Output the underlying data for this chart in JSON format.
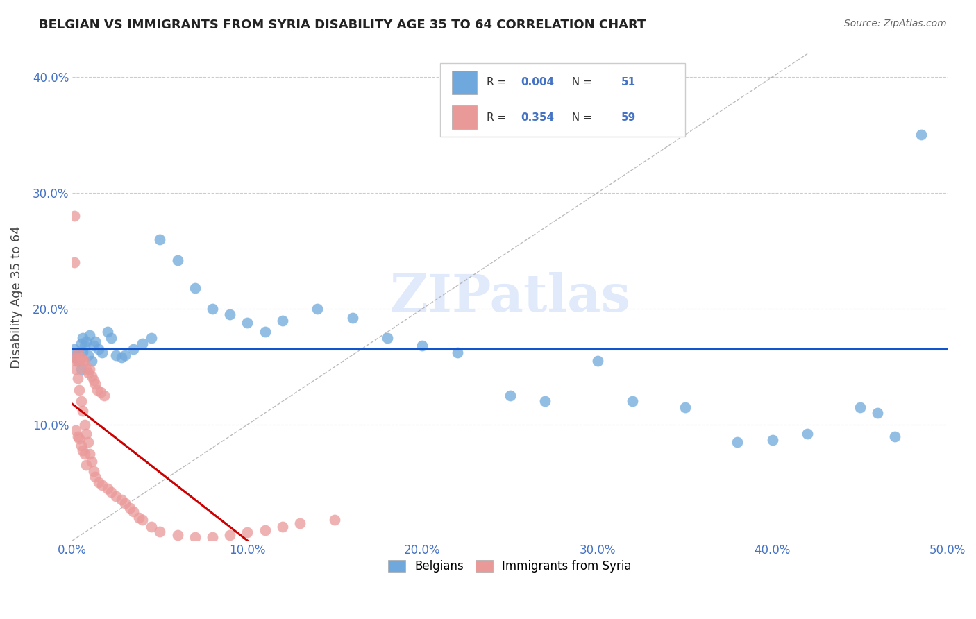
{
  "title": "BELGIAN VS IMMIGRANTS FROM SYRIA DISABILITY AGE 35 TO 64 CORRELATION CHART",
  "source": "Source: ZipAtlas.com",
  "ylabel": "Disability Age 35 to 64",
  "xlim": [
    0.0,
    0.5
  ],
  "ylim": [
    0.0,
    0.42
  ],
  "xticks": [
    0.0,
    0.1,
    0.2,
    0.3,
    0.4,
    0.5
  ],
  "yticks": [
    0.1,
    0.2,
    0.3,
    0.4
  ],
  "xticklabels": [
    "0.0%",
    "10.0%",
    "20.0%",
    "30.0%",
    "40.0%",
    "50.0%"
  ],
  "yticklabels": [
    "10.0%",
    "20.0%",
    "30.0%",
    "40.0%"
  ],
  "legend_labels": [
    "Belgians",
    "Immigrants from Syria"
  ],
  "R_belgian": 0.004,
  "N_belgian": 51,
  "R_syria": 0.354,
  "N_syria": 59,
  "blue_color": "#6fa8dc",
  "pink_color": "#ea9999",
  "line_blue": "#1155cc",
  "line_pink": "#cc0000",
  "watermark": "ZIPatlas",
  "bel_x": [
    0.001,
    0.002,
    0.003,
    0.003,
    0.004,
    0.005,
    0.005,
    0.006,
    0.006,
    0.007,
    0.008,
    0.009,
    0.01,
    0.011,
    0.012,
    0.013,
    0.015,
    0.017,
    0.02,
    0.022,
    0.025,
    0.028,
    0.03,
    0.035,
    0.04,
    0.045,
    0.05,
    0.06,
    0.07,
    0.08,
    0.09,
    0.1,
    0.11,
    0.12,
    0.14,
    0.16,
    0.18,
    0.2,
    0.22,
    0.25,
    0.27,
    0.3,
    0.32,
    0.35,
    0.38,
    0.4,
    0.42,
    0.45,
    0.46,
    0.47,
    0.485
  ],
  "bel_y": [
    0.165,
    0.158,
    0.162,
    0.155,
    0.16,
    0.17,
    0.148,
    0.175,
    0.163,
    0.168,
    0.172,
    0.16,
    0.177,
    0.155,
    0.168,
    0.172,
    0.165,
    0.162,
    0.18,
    0.175,
    0.16,
    0.158,
    0.16,
    0.165,
    0.17,
    0.175,
    0.26,
    0.242,
    0.218,
    0.2,
    0.195,
    0.188,
    0.18,
    0.19,
    0.2,
    0.192,
    0.175,
    0.168,
    0.162,
    0.125,
    0.12,
    0.155,
    0.12,
    0.115,
    0.085,
    0.087,
    0.092,
    0.115,
    0.11,
    0.09,
    0.35
  ],
  "syr_x": [
    0.001,
    0.001,
    0.001,
    0.002,
    0.002,
    0.002,
    0.003,
    0.003,
    0.003,
    0.004,
    0.004,
    0.004,
    0.005,
    0.005,
    0.005,
    0.006,
    0.006,
    0.006,
    0.007,
    0.007,
    0.007,
    0.008,
    0.008,
    0.008,
    0.009,
    0.009,
    0.01,
    0.01,
    0.011,
    0.011,
    0.012,
    0.012,
    0.013,
    0.013,
    0.014,
    0.015,
    0.016,
    0.017,
    0.018,
    0.02,
    0.022,
    0.025,
    0.028,
    0.03,
    0.033,
    0.035,
    0.038,
    0.04,
    0.045,
    0.05,
    0.06,
    0.07,
    0.08,
    0.09,
    0.1,
    0.11,
    0.12,
    0.13,
    0.15
  ],
  "syr_y": [
    0.28,
    0.24,
    0.158,
    0.155,
    0.148,
    0.095,
    0.162,
    0.14,
    0.09,
    0.155,
    0.13,
    0.088,
    0.158,
    0.12,
    0.082,
    0.155,
    0.112,
    0.078,
    0.155,
    0.1,
    0.075,
    0.148,
    0.092,
    0.065,
    0.145,
    0.085,
    0.148,
    0.075,
    0.142,
    0.068,
    0.138,
    0.06,
    0.135,
    0.055,
    0.13,
    0.05,
    0.128,
    0.048,
    0.125,
    0.045,
    0.042,
    0.038,
    0.035,
    0.032,
    0.028,
    0.025,
    0.02,
    0.018,
    0.012,
    0.008,
    0.005,
    0.003,
    0.003,
    0.005,
    0.007,
    0.009,
    0.012,
    0.015,
    0.018
  ]
}
